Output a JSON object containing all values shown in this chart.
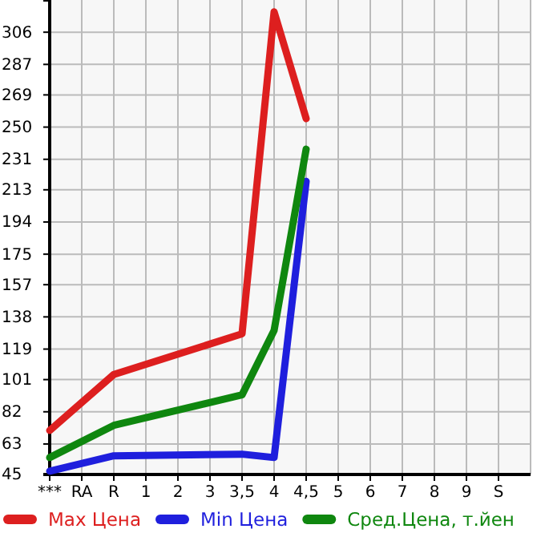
{
  "chart_data": {
    "type": "line",
    "categories": [
      "***",
      "RA",
      "R",
      "1",
      "2",
      "3",
      "3,5",
      "4",
      "4,5",
      "5",
      "6",
      "7",
      "8",
      "9",
      "S"
    ],
    "series": [
      {
        "name": "Max Цена",
        "color": "#dd1f1f",
        "values": [
          71,
          null,
          104,
          null,
          null,
          null,
          128,
          318,
          255,
          null,
          null,
          null,
          null,
          null,
          null
        ]
      },
      {
        "name": "Min Цена",
        "color": "#1f1fdd",
        "values": [
          47,
          null,
          56,
          null,
          null,
          null,
          57,
          55,
          218,
          null,
          null,
          null,
          null,
          null,
          null
        ]
      },
      {
        "name": "Сред.Цена, т.йен",
        "color": "#0f870f",
        "values": [
          55,
          null,
          74,
          null,
          null,
          null,
          92,
          130,
          237,
          null,
          null,
          null,
          null,
          null,
          null
        ]
      }
    ],
    "ylim": [
      45,
      325
    ],
    "yticks": [
      45,
      63,
      82,
      101,
      119,
      138,
      157,
      175,
      194,
      213,
      231,
      250,
      269,
      287,
      306
    ],
    "grid": true,
    "legend": "bottom",
    "marker": "none",
    "line_style": "solid"
  }
}
